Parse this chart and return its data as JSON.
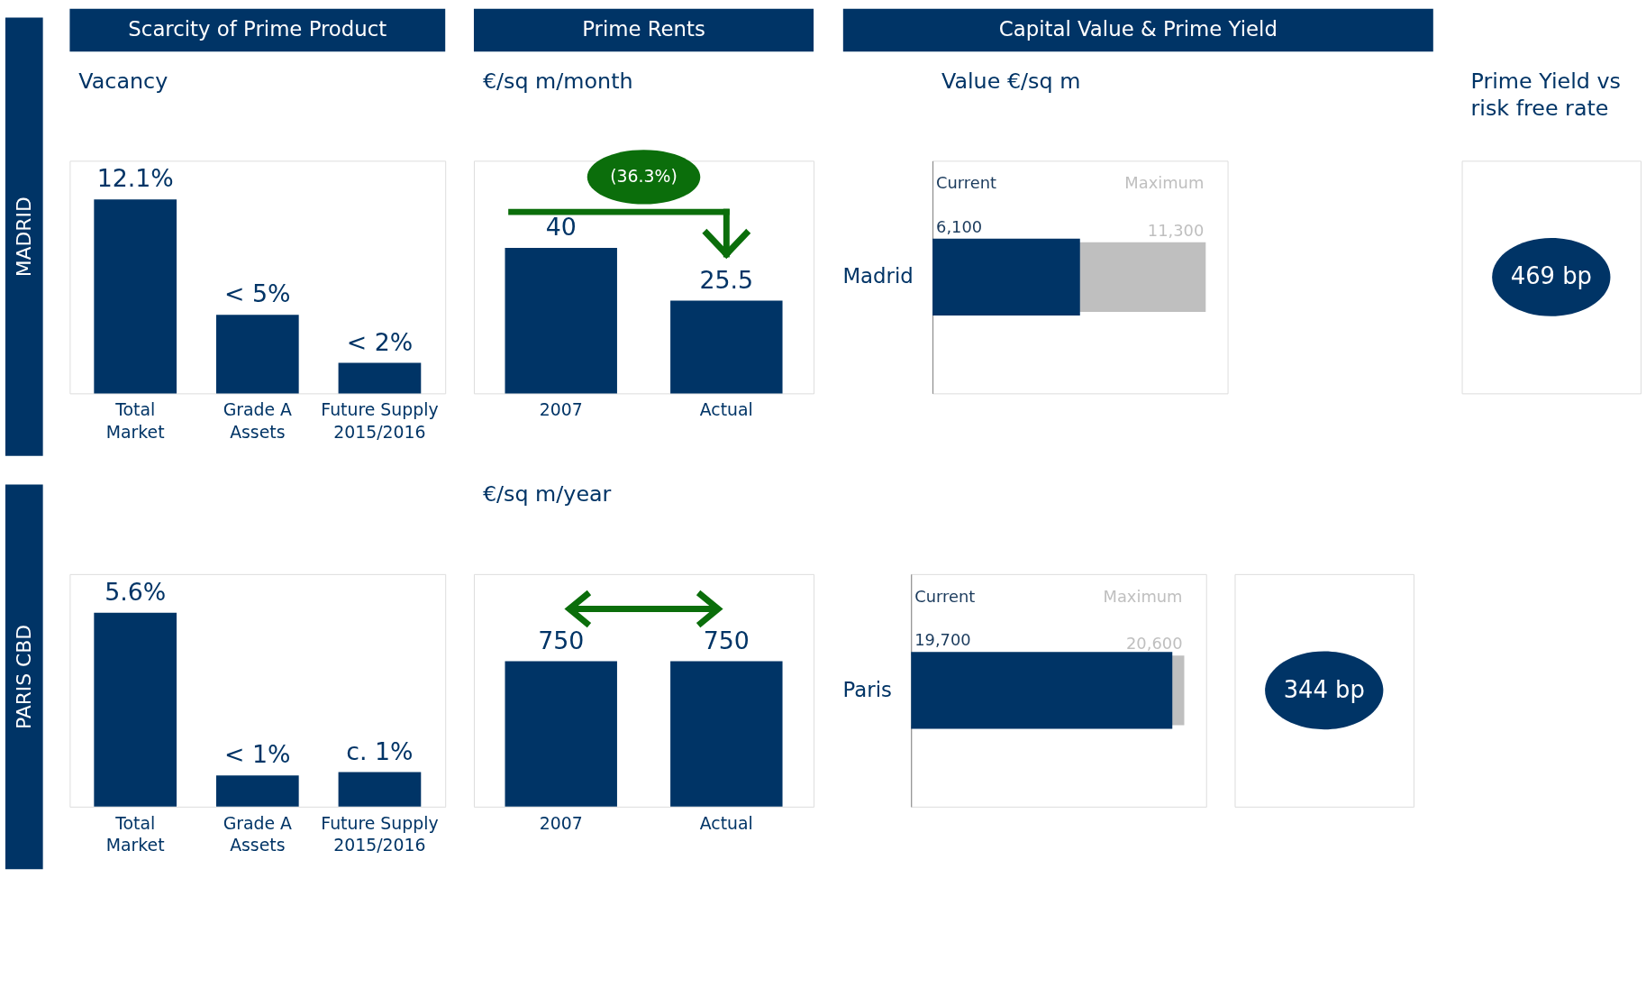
{
  "chart_data": [
    {
      "type": "bar",
      "title": "Scarcity of Prime Product",
      "subtitle": "Vacancy",
      "ylabel": "MADRID",
      "categories": [
        "Total Market",
        "Grade A Assets",
        "Future Supply 2015/2016"
      ],
      "values": [
        12.1,
        4.9,
        1.9
      ],
      "value_labels": [
        "12.1%",
        "< 5%",
        "< 2%"
      ],
      "color": "#003466"
    },
    {
      "type": "bar",
      "title": "Prime Rents",
      "subtitle": "€/sq m/month",
      "categories": [
        "2007",
        "Actual"
      ],
      "values": [
        40,
        25.5
      ],
      "data_labels": true,
      "color": "#003466",
      "annotations": [
        "(36.3%)"
      ]
    },
    {
      "type": "bar",
      "orientation": "horizontal",
      "title": "Capital Value & Prime Yield",
      "subtitle": "Value €/sq m",
      "categories": [
        "Madrid"
      ],
      "series": [
        {
          "name": "Current",
          "color": "#003466",
          "values": [
            6100
          ],
          "value_labels": [
            "6,100"
          ]
        },
        {
          "name": "Maximum",
          "color": "#bfbfbf",
          "values": [
            11300
          ],
          "value_labels": [
            "11,300"
          ]
        }
      ]
    },
    {
      "type": "other",
      "subtitle": "Prime Yield vs risk free rate",
      "annotations": [
        "469 bp"
      ]
    },
    {
      "type": "bar",
      "ylabel": "PARIS CBD",
      "categories": [
        "Total Market",
        "Grade A Assets",
        "Future Supply 2015/2016"
      ],
      "values": [
        5.6,
        0.9,
        1.0
      ],
      "value_labels": [
        "5.6%",
        "< 1%",
        "c. 1%"
      ],
      "color": "#003466"
    },
    {
      "type": "bar",
      "subtitle": "€/sq m/year",
      "categories": [
        "2007",
        "Actual"
      ],
      "values": [
        750,
        750
      ],
      "data_labels": true,
      "color": "#003466"
    },
    {
      "type": "bar",
      "orientation": "horizontal",
      "categories": [
        "Paris"
      ],
      "series": [
        {
          "name": "Current",
          "color": "#003466",
          "values": [
            19700
          ],
          "value_labels": [
            "19,700"
          ]
        },
        {
          "name": "Maximum",
          "color": "#bfbfbf",
          "values": [
            20600
          ],
          "value_labels": [
            "20,600"
          ]
        }
      ]
    },
    {
      "type": "other",
      "annotations": [
        "344 bp"
      ]
    }
  ]
}
